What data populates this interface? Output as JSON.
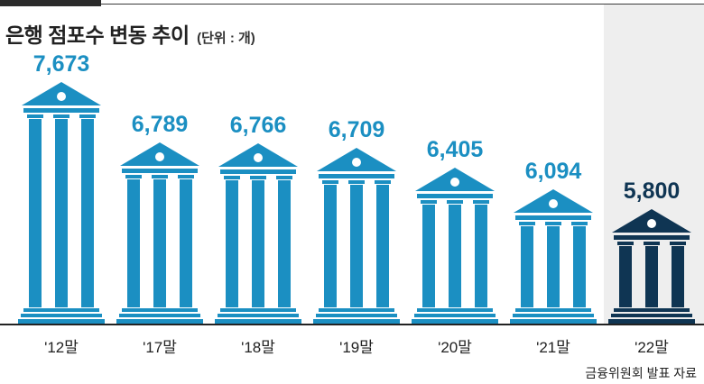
{
  "title": "은행 점포수 변동 추이",
  "unit": "(단위 : 개)",
  "source": "금융위원회 발표 자료",
  "colors": {
    "bar": "#1b8fc2",
    "highlight": "#0f3553",
    "highlight_bg": "#eeeeee",
    "axis": "#222222"
  },
  "chart_data": {
    "type": "bar",
    "categories": [
      "'12말",
      "'17말",
      "'18말",
      "'19말",
      "'20말",
      "'21말",
      "'22말"
    ],
    "values": [
      7673,
      6789,
      6766,
      6709,
      6405,
      6094,
      5800
    ],
    "value_labels": [
      "7,673",
      "6,789",
      "6,766",
      "6,709",
      "6,405",
      "6,094",
      "5,800"
    ],
    "highlight_index": 6,
    "title": "은행 점포수 변동 추이",
    "unit": "(단위 : 개)",
    "grid": false,
    "legend": "none"
  }
}
